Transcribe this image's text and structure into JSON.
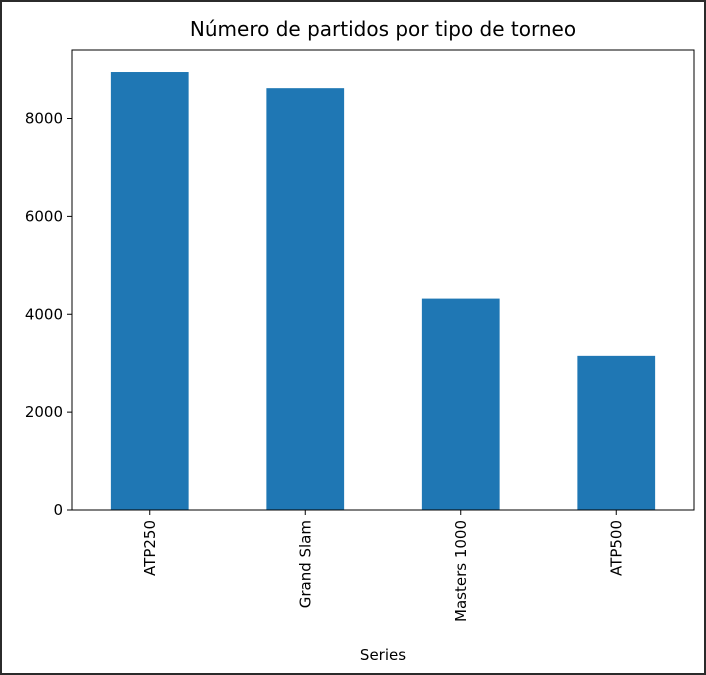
{
  "chart_data": {
    "type": "bar",
    "title": "Número de partidos por tipo de torneo",
    "xlabel": "Series",
    "ylabel": "",
    "categories": [
      "ATP250",
      "Grand Slam",
      "Masters 1000",
      "ATP500"
    ],
    "values": [
      8950,
      8620,
      4320,
      3150
    ],
    "ylim": [
      0,
      9400
    ],
    "yticks": [
      0,
      2000,
      4000,
      6000,
      8000
    ],
    "grid": false,
    "legend": false,
    "bar_color": "#1f77b4"
  }
}
